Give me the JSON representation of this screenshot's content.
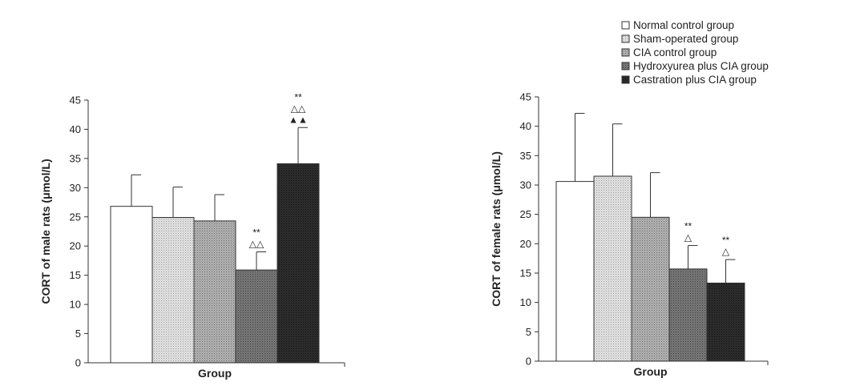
{
  "legend": {
    "entries": [
      {
        "label": "Normal control group",
        "color": "#ffffff",
        "pattern": "none"
      },
      {
        "label": "Sham-operated group",
        "color": "#d6d6d6",
        "pattern": "dots-light"
      },
      {
        "label": "CIA control group",
        "color": "#a8a8a8",
        "pattern": "dots-mid"
      },
      {
        "label": "Hydroxyurea plus CIA group",
        "color": "#6e6e6e",
        "pattern": "dots-dark"
      },
      {
        "label": "Castration plus CIA group",
        "color": "#262626",
        "pattern": "dots-darkest"
      }
    ],
    "placement": "top-right"
  },
  "chart_data": [
    {
      "type": "bar",
      "xlabel": "Group",
      "ylabel": "CORT of male rats (μmol/L)",
      "ylim": [
        0,
        45
      ],
      "yticks": [
        0,
        5,
        10,
        15,
        20,
        25,
        30,
        35,
        40,
        45
      ],
      "categories": [
        "Normal control group",
        "Sham-operated group",
        "CIA control group",
        "Hydroxyurea plus CIA group",
        "Castration plus CIA group"
      ],
      "values": [
        26.8,
        24.9,
        24.3,
        15.9,
        34.1
      ],
      "errors": [
        5.4,
        5.2,
        4.5,
        3.1,
        6.2
      ],
      "annotations": [
        [],
        [],
        [],
        [
          "**",
          "△△"
        ],
        [
          "**",
          "△△",
          "▲▲"
        ]
      ],
      "grid": false
    },
    {
      "type": "bar",
      "xlabel": "Group",
      "ylabel": "CORT of female rats (μmol/L)",
      "ylim": [
        0,
        45
      ],
      "yticks": [
        0,
        5,
        10,
        15,
        20,
        25,
        30,
        35,
        40,
        45
      ],
      "categories": [
        "Normal control group",
        "Sham-operated group",
        "CIA control group",
        "Hydroxyurea plus CIA group",
        "Castration plus CIA group"
      ],
      "values": [
        30.6,
        31.5,
        24.5,
        15.7,
        13.3
      ],
      "errors": [
        11.6,
        8.9,
        7.6,
        4.0,
        4.0
      ],
      "annotations": [
        [],
        [],
        [],
        [
          "**",
          "△"
        ],
        [
          "**",
          "△"
        ]
      ],
      "grid": false
    }
  ]
}
